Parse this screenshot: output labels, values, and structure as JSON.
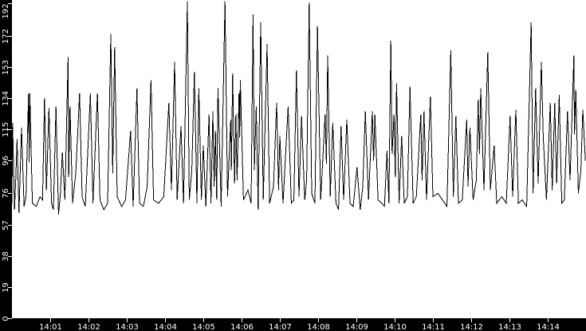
{
  "chart_data": {
    "type": "line",
    "title": "",
    "xlabel": "",
    "ylabel": "",
    "xlim": [
      "14:00:00",
      "14:15:00"
    ],
    "ylim": [
      0,
      193
    ],
    "grid": false,
    "legend": "none",
    "colors": {
      "background": "#000000",
      "plot_area": "#ffffff",
      "line": "#000000",
      "axis_text": "#ffffff"
    },
    "y_ticks": [
      0,
      19,
      38,
      57,
      76,
      96,
      115,
      134,
      153,
      172,
      192
    ],
    "x_ticks": [
      "14:01",
      "14:02",
      "14:03",
      "14:04",
      "14:05",
      "14:06",
      "14:07",
      "14:08",
      "14:09",
      "14:10",
      "14:11",
      "14:12",
      "14:13",
      "14:14"
    ],
    "series": [
      {
        "points": [
          [
            "14:00:00",
            70
          ],
          [
            "14:00:01",
            119
          ],
          [
            "14:00:04",
            66
          ],
          [
            "14:00:06",
            85
          ],
          [
            "14:00:08",
            109
          ],
          [
            "14:00:11",
            64
          ],
          [
            "14:00:15",
            116
          ],
          [
            "14:00:19",
            68
          ],
          [
            "14:00:22",
            74
          ],
          [
            "14:00:26",
            137
          ],
          [
            "14:00:27",
            95
          ],
          [
            "14:00:28",
            137
          ],
          [
            "14:00:32",
            70
          ],
          [
            "14:00:38",
            68
          ],
          [
            "14:00:44",
            74
          ],
          [
            "14:00:48",
            72
          ],
          [
            "14:00:51",
            134
          ],
          [
            "14:00:54",
            78
          ],
          [
            "14:00:58",
            128
          ],
          [
            "14:01:02",
            70
          ],
          [
            "14:01:05",
            66
          ],
          [
            "14:01:09",
            129
          ],
          [
            "14:01:13",
            63
          ],
          [
            "14:01:16",
            76
          ],
          [
            "14:01:19",
            101
          ],
          [
            "14:01:23",
            72
          ],
          [
            "14:01:28",
            159
          ],
          [
            "14:01:29",
            86
          ],
          [
            "14:01:31",
            129
          ],
          [
            "14:01:35",
            70
          ],
          [
            "14:01:40",
            88
          ],
          [
            "14:01:46",
            137
          ],
          [
            "14:01:50",
            74
          ],
          [
            "14:01:55",
            68
          ],
          [
            "14:02:03",
            137
          ],
          [
            "14:02:07",
            70
          ],
          [
            "14:02:14",
            137
          ],
          [
            "14:02:18",
            72
          ],
          [
            "14:02:24",
            66
          ],
          [
            "14:02:30",
            70
          ],
          [
            "14:02:35",
            173
          ],
          [
            "14:02:38",
            88
          ],
          [
            "14:02:41",
            165
          ],
          [
            "14:02:45",
            74
          ],
          [
            "14:02:52",
            68
          ],
          [
            "14:02:58",
            72
          ],
          [
            "14:03:06",
            114
          ],
          [
            "14:03:10",
            68
          ],
          [
            "14:03:16",
            140
          ],
          [
            "14:03:20",
            70
          ],
          [
            "14:03:26",
            68
          ],
          [
            "14:03:32",
            80
          ],
          [
            "14:03:38",
            145
          ],
          [
            "14:03:42",
            72
          ],
          [
            "14:03:50",
            70
          ],
          [
            "14:03:58",
            74
          ],
          [
            "14:04:06",
            131
          ],
          [
            "14:04:10",
            78
          ],
          [
            "14:04:15",
            156
          ],
          [
            "14:04:19",
            72
          ],
          [
            "14:04:25",
            117
          ],
          [
            "14:04:29",
            70
          ],
          [
            "14:04:35",
            193
          ],
          [
            "14:04:38",
            72
          ],
          [
            "14:04:42",
            90
          ],
          [
            "14:04:46",
            150
          ],
          [
            "14:04:50",
            70
          ],
          [
            "14:04:53",
            140
          ],
          [
            "14:04:57",
            72
          ],
          [
            "14:05:00",
            105
          ],
          [
            "14:05:04",
            68
          ],
          [
            "14:05:09",
            124
          ],
          [
            "14:05:12",
            70
          ],
          [
            "14:05:15",
            126
          ],
          [
            "14:05:17",
            80
          ],
          [
            "14:05:19",
            114
          ],
          [
            "14:05:21",
            72
          ],
          [
            "14:05:23",
            140
          ],
          [
            "14:05:28",
            68
          ],
          [
            "14:05:34",
            193
          ],
          [
            "14:05:38",
            74
          ],
          [
            "14:05:43",
            121
          ],
          [
            "14:05:44",
            90
          ],
          [
            "14:05:46",
            149
          ],
          [
            "14:05:49",
            82
          ],
          [
            "14:05:51",
            124
          ],
          [
            "14:05:53",
            84
          ],
          [
            "14:05:56",
            137
          ],
          [
            "14:05:57",
            110
          ],
          [
            "14:05:58",
            145
          ],
          [
            "14:06:03",
            72
          ],
          [
            "14:06:10",
            78
          ],
          [
            "14:06:15",
            70
          ],
          [
            "14:06:18",
            185
          ],
          [
            "14:06:20",
            90
          ],
          [
            "14:06:23",
            129
          ],
          [
            "14:06:26",
            66
          ],
          [
            "14:06:30",
            180
          ],
          [
            "14:06:34",
            72
          ],
          [
            "14:06:40",
            167
          ],
          [
            "14:06:44",
            70
          ],
          [
            "14:06:50",
            80
          ],
          [
            "14:06:55",
            131
          ],
          [
            "14:06:58",
            78
          ],
          [
            "14:07:00",
            111
          ],
          [
            "14:07:05",
            70
          ],
          [
            "14:07:13",
            129
          ],
          [
            "14:07:18",
            70
          ],
          [
            "14:07:22",
            72
          ],
          [
            "14:07:26",
            151
          ],
          [
            "14:07:30",
            74
          ],
          [
            "14:07:34",
            123
          ],
          [
            "14:07:39",
            72
          ],
          [
            "14:07:42",
            84
          ],
          [
            "14:07:46",
            192
          ],
          [
            "14:07:50",
            76
          ],
          [
            "14:07:55",
            70
          ],
          [
            "14:07:59",
            178
          ],
          [
            "14:08:04",
            72
          ],
          [
            "14:08:11",
            124
          ],
          [
            "14:08:13",
            94
          ],
          [
            "14:08:15",
            160
          ],
          [
            "14:08:19",
            74
          ],
          [
            "14:08:23",
            119
          ],
          [
            "14:08:28",
            70
          ],
          [
            "14:08:32",
            66
          ],
          [
            "14:08:36",
            117
          ],
          [
            "14:08:40",
            72
          ],
          [
            "14:08:45",
            121
          ],
          [
            "14:08:50",
            70
          ],
          [
            "14:08:55",
            68
          ],
          [
            "14:09:01",
            92
          ],
          [
            "14:09:06",
            66
          ],
          [
            "14:09:10",
            80
          ],
          [
            "14:09:14",
            126
          ],
          [
            "14:09:19",
            72
          ],
          [
            "14:09:25",
            126
          ],
          [
            "14:09:27",
            96
          ],
          [
            "14:09:29",
            124
          ],
          [
            "14:09:34",
            72
          ],
          [
            "14:09:40",
            70
          ],
          [
            "14:09:44",
            68
          ],
          [
            "14:09:48",
            102
          ],
          [
            "14:09:51",
            70
          ],
          [
            "14:09:54",
            169
          ],
          [
            "14:09:56",
            100
          ],
          [
            "14:09:59",
            124
          ],
          [
            "14:10:01",
            86
          ],
          [
            "14:10:03",
            143
          ],
          [
            "14:10:07",
            70
          ],
          [
            "14:10:11",
            111
          ],
          [
            "14:10:15",
            70
          ],
          [
            "14:10:20",
            74
          ],
          [
            "14:10:24",
            141
          ],
          [
            "14:10:29",
            70
          ],
          [
            "14:10:34",
            74
          ],
          [
            "14:10:41",
            124
          ],
          [
            "14:10:43",
            84
          ],
          [
            "14:10:46",
            126
          ],
          [
            "14:10:50",
            72
          ],
          [
            "14:10:56",
            135
          ],
          [
            "14:11:00",
            74
          ],
          [
            "14:11:08",
            76
          ],
          [
            "14:11:15",
            72
          ],
          [
            "14:11:22",
            68
          ],
          [
            "14:11:28",
            163
          ],
          [
            "14:11:32",
            74
          ],
          [
            "14:11:36",
            123
          ],
          [
            "14:11:40",
            70
          ],
          [
            "14:11:46",
            72
          ],
          [
            "14:11:53",
            121
          ],
          [
            "14:11:55",
            80
          ],
          [
            "14:11:58",
            116
          ],
          [
            "14:12:03",
            72
          ],
          [
            "14:12:08",
            84
          ],
          [
            "14:12:11",
            133
          ],
          [
            "14:12:13",
            100
          ],
          [
            "14:12:15",
            140
          ],
          [
            "14:12:20",
            78
          ],
          [
            "14:12:26",
            162
          ],
          [
            "14:12:30",
            78
          ],
          [
            "14:12:36",
            105
          ],
          [
            "14:12:40",
            70
          ],
          [
            "14:12:48",
            74
          ],
          [
            "14:12:55",
            70
          ],
          [
            "14:13:01",
            123
          ],
          [
            "14:13:05",
            74
          ],
          [
            "14:13:10",
            127
          ],
          [
            "14:13:14",
            70
          ],
          [
            "14:13:20",
            72
          ],
          [
            "14:13:27",
            68
          ],
          [
            "14:13:34",
            180
          ],
          [
            "14:13:37",
            76
          ],
          [
            "14:13:41",
            140
          ],
          [
            "14:13:45",
            82
          ],
          [
            "14:13:50",
            156
          ],
          [
            "14:13:53",
            110
          ],
          [
            "14:13:58",
            72
          ],
          [
            "14:14:04",
            131
          ],
          [
            "14:14:07",
            78
          ],
          [
            "14:14:11",
            131
          ],
          [
            "14:14:14",
            82
          ],
          [
            "14:14:18",
            136
          ],
          [
            "14:14:22",
            70
          ],
          [
            "14:14:26",
            72
          ],
          [
            "14:14:31",
            126
          ],
          [
            "14:14:35",
            84
          ],
          [
            "14:14:41",
            160
          ],
          [
            "14:14:42",
            112
          ],
          [
            "14:14:44",
            139
          ],
          [
            "14:14:48",
            76
          ],
          [
            "14:14:52",
            90
          ],
          [
            "14:14:55",
            127
          ],
          [
            "14:14:59",
            96
          ]
        ]
      }
    ]
  }
}
